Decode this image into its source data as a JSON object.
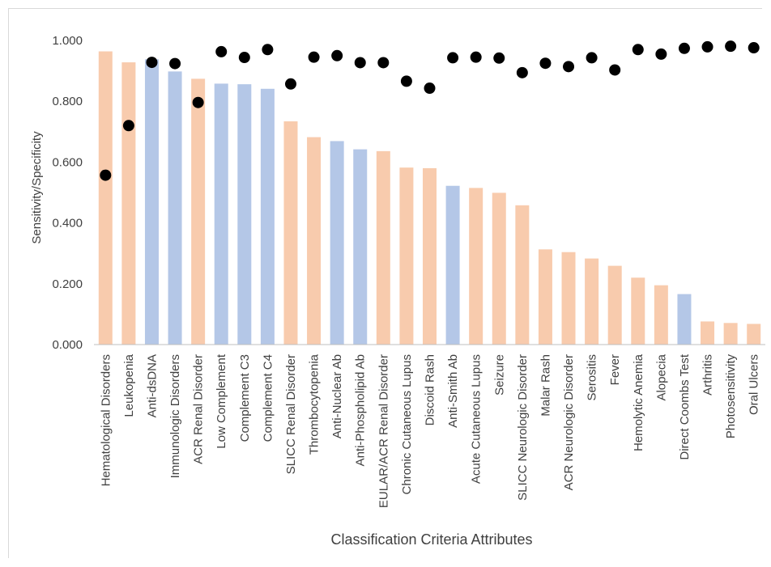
{
  "chart_data": {
    "type": "bar",
    "title": "",
    "xlabel": "Classification Criteria Attributes",
    "ylabel": "Sensitivity/Specificity",
    "ylim": [
      0,
      1
    ],
    "yticks": [
      "0.000",
      "0.200",
      "0.400",
      "0.600",
      "0.800",
      "1.000"
    ],
    "grid": false,
    "legend": "none",
    "categories": [
      "Hematological Disorders",
      "Leukopenia",
      "Anti-dsDNA",
      "Immunologic Disorders",
      "ACR Renal Disorder",
      "Low Complement",
      "Complement C3",
      "Complement C4",
      "SLICC Renal Disorder",
      "Thrombocytopenia",
      "Anti-Nuclear Ab",
      "Anti-Phospholipid Ab",
      "EULAR/ACR Renal Disorder",
      "Chronic Cutaneous Lupus",
      "Discoid Rash",
      "Anti-Smith Ab",
      "Acute Cutaneous Lupus",
      "Seizure",
      "SLICC Neurologic Disorder",
      "Malar Rash",
      "ACR Neurologic Disorder",
      "Serositis",
      "Fever",
      "Hemolytic Anemia",
      "Alopecia",
      "Direct Coombs Test",
      "Arthritis",
      "Photosensitivity",
      "Oral Ulcers"
    ],
    "series": [
      {
        "values": [
          0.964,
          0.928,
          0.938,
          0.898,
          0.874,
          0.858,
          0.856,
          0.841,
          0.734,
          0.682,
          0.669,
          0.642,
          0.636,
          0.582,
          0.58,
          0.522,
          0.515,
          0.499,
          0.458,
          0.313,
          0.304,
          0.283,
          0.259,
          0.22,
          0.195,
          0.166,
          0.076,
          0.071,
          0.068
        ],
        "bar_colors": [
          "orange",
          "orange",
          "blue",
          "blue",
          "orange",
          "blue",
          "blue",
          "blue",
          "orange",
          "orange",
          "blue",
          "blue",
          "orange",
          "orange",
          "orange",
          "blue",
          "orange",
          "orange",
          "orange",
          "orange",
          "orange",
          "orange",
          "orange",
          "orange",
          "orange",
          "blue",
          "orange",
          "orange",
          "orange"
        ]
      },
      {
        "type": "scatter",
        "values": [
          0.557,
          0.72,
          0.928,
          0.924,
          0.796,
          0.963,
          0.944,
          0.97,
          0.857,
          0.945,
          0.95,
          0.927,
          0.927,
          0.866,
          0.843,
          0.943,
          0.945,
          0.942,
          0.894,
          0.925,
          0.914,
          0.943,
          0.903,
          0.97,
          0.955,
          0.974,
          0.979,
          0.981,
          0.976
        ]
      }
    ],
    "colors": {
      "orange": "#f8cbad",
      "blue": "#b4c7e7",
      "marker": "#000000",
      "axis": "#bfbfbf"
    }
  }
}
